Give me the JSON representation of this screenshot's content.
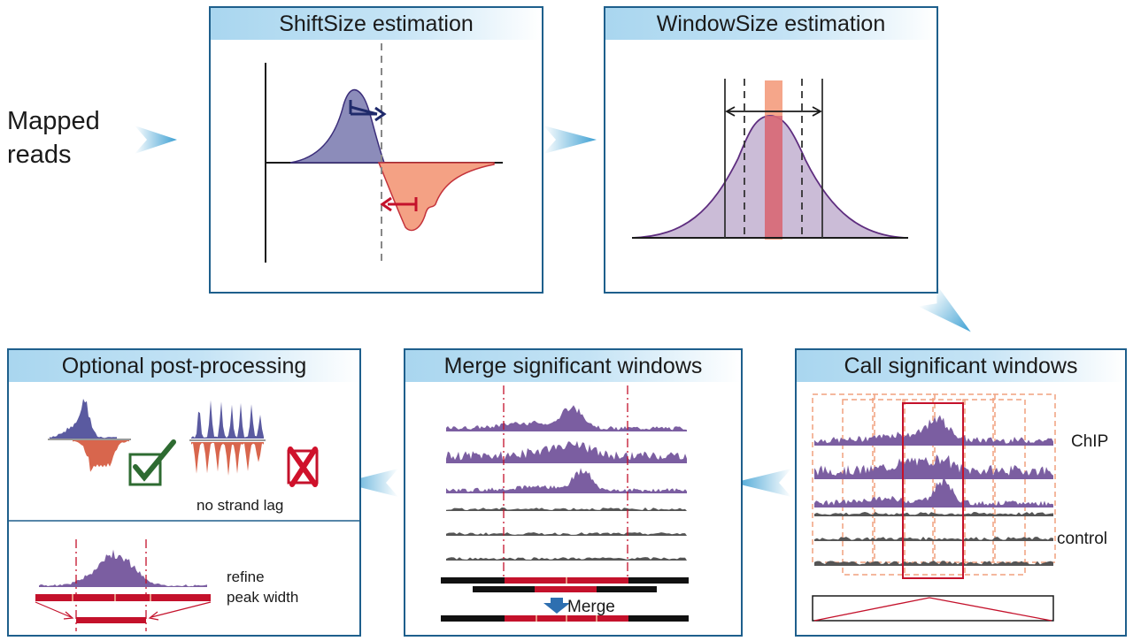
{
  "input": {
    "label_line1": "Mapped",
    "label_line2": "reads"
  },
  "panels": {
    "shift": {
      "title": "ShiftSize estimation"
    },
    "window": {
      "title": "WindowSize estimation"
    },
    "call": {
      "title": "Call significant windows",
      "chip_label": "ChIP",
      "control_label": "control"
    },
    "merge": {
      "title": "Merge significant windows",
      "merge_label": "Merge"
    },
    "post": {
      "title": "Optional post-processing",
      "strand_label": "no strand lag",
      "refine_line1": "refine",
      "refine_line2": "peak width"
    }
  },
  "colors": {
    "frame": "#1e5f8c",
    "header": "#a9d6ef",
    "arrow": "#3da0d3",
    "purple": "#7b5ea1",
    "navy_fill": "#8c8cba",
    "salmon": "#f4a184",
    "red": "#d0112b",
    "green": "#2e6b31"
  }
}
